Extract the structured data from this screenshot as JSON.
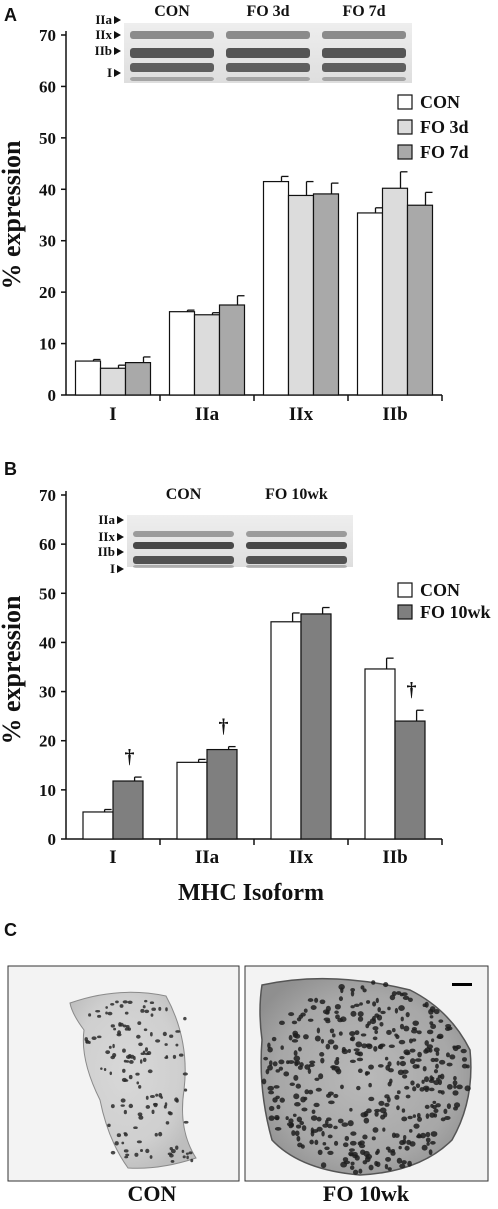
{
  "panels": {
    "a": "A",
    "b": "B",
    "c": "C"
  },
  "chart_data": [
    {
      "type": "bar",
      "ylabel": "% expression",
      "xlabel": "",
      "ylim": [
        0,
        70
      ],
      "yticks": [
        0,
        10,
        20,
        30,
        40,
        50,
        60,
        70
      ],
      "categories": [
        "I",
        "IIa",
        "IIx",
        "IIb"
      ],
      "series": [
        {
          "name": "CON",
          "color": "#ffffff",
          "values": [
            6.6,
            16.2,
            41.5,
            35.4
          ],
          "errors": [
            0.3,
            0.3,
            1.0,
            1.0
          ]
        },
        {
          "name": "FO 3d",
          "color": "#dcdcdc",
          "values": [
            5.2,
            15.6,
            38.8,
            40.2
          ],
          "errors": [
            0.6,
            0.4,
            2.7,
            3.2
          ]
        },
        {
          "name": "FO 7d",
          "color": "#a9a9a9",
          "values": [
            6.3,
            17.5,
            39.1,
            36.9
          ],
          "errors": [
            1.1,
            1.8,
            2.1,
            2.5
          ]
        }
      ],
      "legend": "top-right",
      "gel": {
        "lanes": [
          "CON",
          "FO 3d",
          "FO 7d"
        ],
        "bands": [
          "IIa",
          "IIx",
          "IIb",
          "I"
        ]
      }
    },
    {
      "type": "bar",
      "ylabel": "% expression",
      "xlabel": "MHC Isoform",
      "ylim": [
        0,
        70
      ],
      "yticks": [
        0,
        10,
        20,
        30,
        40,
        50,
        60,
        70
      ],
      "categories": [
        "I",
        "IIa",
        "IIx",
        "IIb"
      ],
      "series": [
        {
          "name": "CON",
          "color": "#ffffff",
          "values": [
            5.5,
            15.6,
            44.2,
            34.6
          ],
          "errors": [
            0.5,
            0.6,
            1.8,
            2.2
          ]
        },
        {
          "name": "FO 10wk",
          "color": "#7f7f7f",
          "values": [
            11.8,
            18.2,
            45.8,
            24.0
          ],
          "errors": [
            0.8,
            0.6,
            1.3,
            2.2
          ]
        }
      ],
      "significance": [
        {
          "category": "I",
          "mark": "†"
        },
        {
          "category": "IIa",
          "mark": "†"
        },
        {
          "category": "IIb",
          "mark": "†"
        }
      ],
      "legend": "right",
      "gel": {
        "lanes": [
          "CON",
          "FO 10wk"
        ],
        "bands": [
          "IIa",
          "IIx",
          "IIb",
          "I"
        ]
      }
    }
  ],
  "micrographs": {
    "left_caption": "CON",
    "right_caption": "FO 10wk"
  }
}
